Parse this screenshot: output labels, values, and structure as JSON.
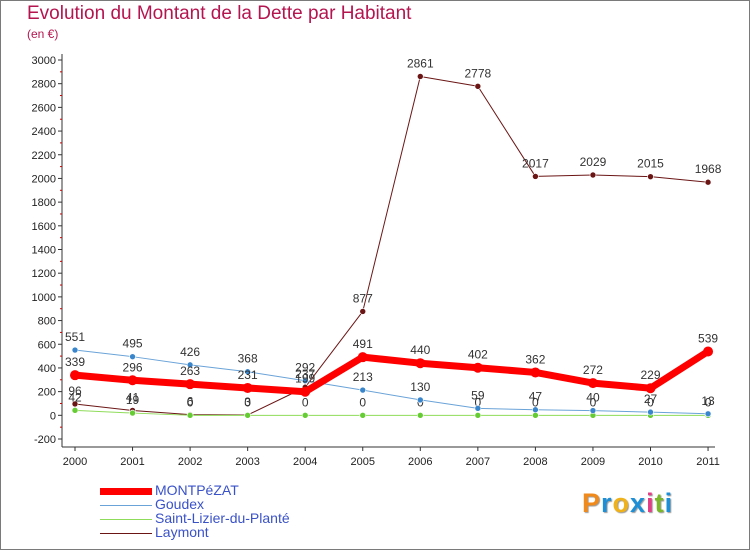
{
  "title": "Evolution du Montant de la Dette par Habitant",
  "unit_label": "(en €)",
  "logo": {
    "text": "Proxiti",
    "letters": [
      "P",
      "r",
      "o",
      "x",
      "i",
      "t",
      "i"
    ],
    "colors": [
      "#f08a1a",
      "#1d8fd6",
      "#f0b21a",
      "#1d8fd6",
      "#e43d86",
      "#7ab829",
      "#1d8fd6"
    ]
  },
  "colors": {
    "title": "#b5154f",
    "axis": "#333333",
    "grid_marker": "#cc0000",
    "legend_text": "#3a52c8"
  },
  "chart_data": {
    "type": "line",
    "title": "Evolution du Montant de la Dette par Habitant",
    "ylabel": "(en €)",
    "xlabel": "",
    "x": [
      "2000",
      "2001",
      "2002",
      "2003",
      "2004",
      "2005",
      "2006",
      "2007",
      "2008",
      "2009",
      "2010",
      "2011"
    ],
    "ylim": [
      -200,
      3000
    ],
    "yticks": [
      -200,
      0,
      200,
      400,
      600,
      800,
      1000,
      1200,
      1400,
      1600,
      1800,
      2000,
      2200,
      2400,
      2600,
      2800,
      3000
    ],
    "legend_position": "bottom-left",
    "series": [
      {
        "name": "Laymont",
        "color": "#6b1515",
        "marker": "#6b1515",
        "width": 1,
        "values": [
          96,
          41,
          6,
          3,
          237,
          877,
          2861,
          2778,
          2017,
          2029,
          2015,
          1968
        ],
        "labels": [
          "96",
          "41",
          "6",
          "3",
          "237",
          "877",
          "2861",
          "2778",
          "2017",
          "2029",
          "2015",
          "1968"
        ]
      },
      {
        "name": "Saint-Lizier-du-Planté",
        "color": "#8fdc5a",
        "marker": "#66cc33",
        "width": 1,
        "values": [
          42,
          19,
          0,
          0,
          0,
          0,
          0,
          0,
          0,
          0,
          0,
          0
        ],
        "labels": [
          "42",
          "19",
          "0",
          "0",
          "0",
          "0",
          "0",
          "0",
          "0",
          "0",
          "0",
          "0"
        ]
      },
      {
        "name": "Goudex",
        "color": "#6aa3d8",
        "marker": "#3a86cc",
        "width": 1,
        "values": [
          551,
          495,
          426,
          368,
          292,
          213,
          130,
          59,
          47,
          40,
          27,
          13
        ],
        "labels": [
          "551",
          "495",
          "426",
          "368",
          "292",
          "213",
          "130",
          "59",
          "47",
          "40",
          "27",
          "13"
        ]
      },
      {
        "name": "MONTPéZAT",
        "color": "#ff0000",
        "marker": "#ff0000",
        "width": 7,
        "values": [
          339,
          296,
          263,
          231,
          199,
          491,
          440,
          402,
          362,
          272,
          229,
          539
        ],
        "labels": [
          "339",
          "296",
          "263",
          "231",
          "199",
          "491",
          "440",
          "402",
          "362",
          "272",
          "229",
          "539"
        ]
      }
    ],
    "legend": [
      {
        "name": "MONTPéZAT",
        "color": "#ff0000",
        "width": 7
      },
      {
        "name": "Goudex",
        "color": "#6aa3d8",
        "width": 1
      },
      {
        "name": "Saint-Lizier-du-Planté",
        "color": "#8fdc5a",
        "width": 1
      },
      {
        "name": "Laymont",
        "color": "#6b1515",
        "width": 1
      }
    ]
  }
}
